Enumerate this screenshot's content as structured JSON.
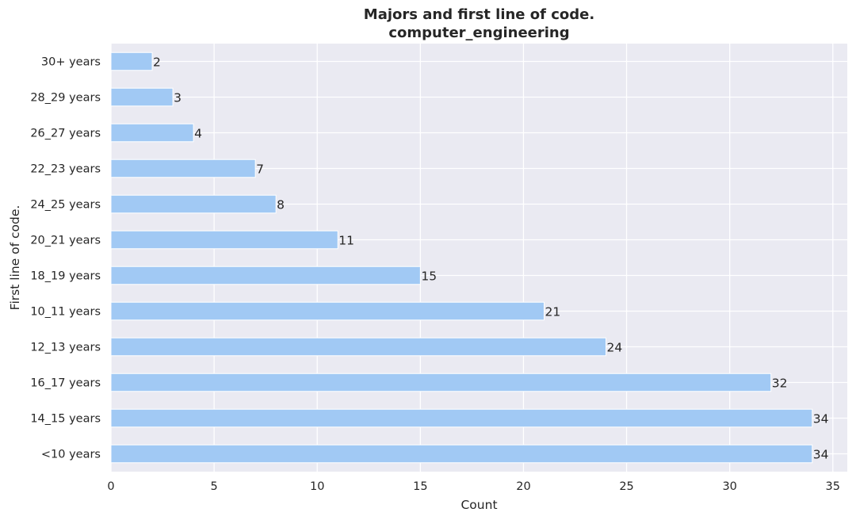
{
  "chart_data": {
    "type": "bar",
    "orientation": "horizontal",
    "title": "Majors and first line of code.",
    "subtitle": "computer_engineering",
    "xlabel": "Count",
    "ylabel": "First line of code.",
    "categories": [
      "30+ years",
      "28_29 years",
      "26_27 years",
      "22_23 years",
      "24_25 years",
      "20_21 years",
      "18_19 years",
      "10_11 years",
      "12_13 years",
      "16_17 years",
      "14_15 years",
      "<10 years"
    ],
    "values": [
      2,
      3,
      4,
      7,
      8,
      11,
      15,
      21,
      24,
      32,
      34,
      34
    ],
    "xlim": [
      0,
      35.7
    ],
    "xticks": [
      0,
      5,
      10,
      15,
      20,
      25,
      30,
      35
    ],
    "grid": true,
    "bar_color": "#a1c9f4",
    "background": "#eaeaf2",
    "grid_color": "#ffffff",
    "data_labels": true
  }
}
